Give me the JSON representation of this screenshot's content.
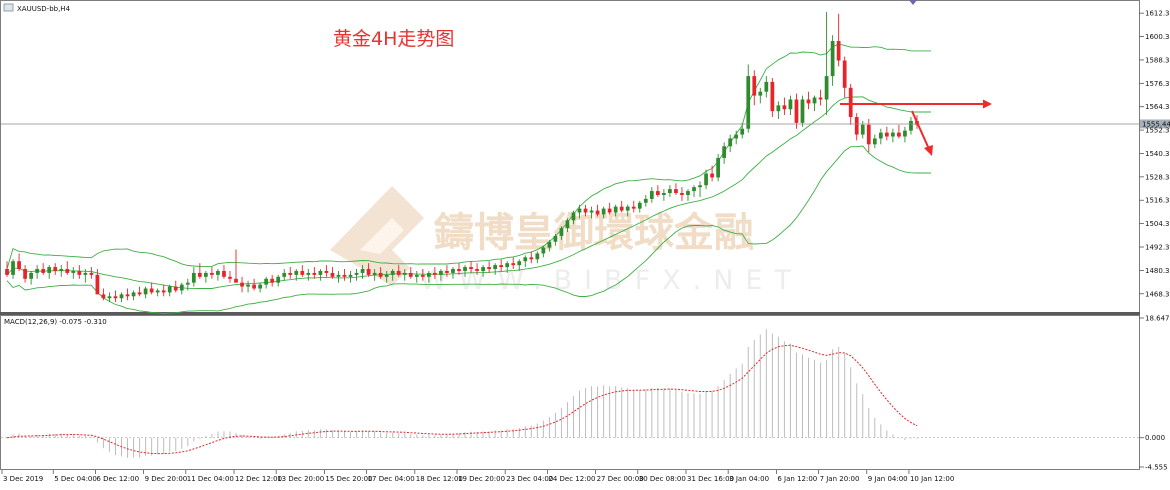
{
  "symbol_label": "XAUUSD-bb,H4",
  "annotation_title": "黄金4H走势图",
  "watermark_cn": "鑄博皇御環球金融",
  "watermark_en": "WWW.BIBFX.NET",
  "colors": {
    "bull": "#2e8b2e",
    "bear": "#e8242b",
    "band": "#3cb043",
    "histogram": "#bdbdbd",
    "signal": "#e3252b",
    "arrow": "#ee2a2a",
    "price_line": "#8a8a8a",
    "price_tag": "#a6b0bb"
  },
  "chart_data": [
    {
      "type": "candlestick",
      "title": "XAUUSD-bb,H4",
      "indicator": "Bollinger Bands",
      "ylim": [
        1461,
        1617
      ],
      "ytick_labels": [
        "1612.30",
        "1600.30",
        "1588.30",
        "1576.30",
        "1564.30",
        "1552.30",
        "1540.30",
        "1528.30",
        "1516.30",
        "1504.30",
        "1492.30",
        "1480.30",
        "1468.30"
      ],
      "current_price": "1555.44",
      "bars": [
        [
          1481,
          1485,
          1477,
          1478
        ],
        [
          1478,
          1486,
          1476,
          1485
        ],
        [
          1485,
          1489,
          1480,
          1481
        ],
        [
          1481,
          1483,
          1474,
          1476
        ],
        [
          1476,
          1480,
          1473,
          1479
        ],
        [
          1479,
          1483,
          1476,
          1481
        ],
        [
          1481,
          1484,
          1478,
          1479
        ],
        [
          1479,
          1483,
          1476,
          1482
        ],
        [
          1482,
          1484,
          1478,
          1480
        ],
        [
          1480,
          1483,
          1477,
          1481
        ],
        [
          1481,
          1485,
          1478,
          1479
        ],
        [
          1479,
          1482,
          1476,
          1480
        ],
        [
          1480,
          1483,
          1476,
          1478
        ],
        [
          1478,
          1481,
          1474,
          1479
        ],
        [
          1479,
          1482,
          1476,
          1478
        ],
        [
          1478,
          1481,
          1470,
          1468
        ],
        [
          1468,
          1471,
          1465,
          1466
        ],
        [
          1466,
          1469,
          1464,
          1467
        ],
        [
          1467,
          1470,
          1464,
          1466
        ],
        [
          1466,
          1469,
          1464,
          1468
        ],
        [
          1468,
          1471,
          1465,
          1467
        ],
        [
          1467,
          1470,
          1465,
          1469
        ],
        [
          1469,
          1472,
          1467,
          1468
        ],
        [
          1468,
          1472,
          1466,
          1471
        ],
        [
          1471,
          1474,
          1468,
          1469
        ],
        [
          1469,
          1471,
          1467,
          1470
        ],
        [
          1470,
          1473,
          1467,
          1469
        ],
        [
          1469,
          1473,
          1467,
          1472
        ],
        [
          1472,
          1475,
          1469,
          1470
        ],
        [
          1470,
          1474,
          1468,
          1473
        ],
        [
          1473,
          1476,
          1470,
          1474
        ],
        [
          1474,
          1482,
          1472,
          1479
        ],
        [
          1479,
          1484,
          1476,
          1477
        ],
        [
          1477,
          1480,
          1474,
          1479
        ],
        [
          1479,
          1482,
          1476,
          1478
        ],
        [
          1478,
          1481,
          1475,
          1480
        ],
        [
          1480,
          1483,
          1476,
          1477
        ],
        [
          1477,
          1480,
          1474,
          1476
        ],
        [
          1476,
          1491,
          1474,
          1474
        ],
        [
          1474,
          1477,
          1469,
          1472
        ],
        [
          1472,
          1475,
          1469,
          1473
        ],
        [
          1473,
          1476,
          1470,
          1471
        ],
        [
          1471,
          1474,
          1469,
          1473
        ],
        [
          1473,
          1477,
          1471,
          1476
        ],
        [
          1476,
          1478,
          1472,
          1474
        ],
        [
          1474,
          1478,
          1472,
          1477
        ],
        [
          1477,
          1481,
          1475,
          1479
        ],
        [
          1479,
          1482,
          1476,
          1478
        ],
        [
          1478,
          1481,
          1475,
          1480
        ],
        [
          1480,
          1483,
          1477,
          1478
        ],
        [
          1478,
          1481,
          1475,
          1479
        ],
        [
          1479,
          1482,
          1476,
          1478
        ],
        [
          1478,
          1481,
          1475,
          1480
        ],
        [
          1480,
          1483,
          1477,
          1479
        ],
        [
          1479,
          1482,
          1476,
          1477
        ],
        [
          1477,
          1480,
          1474,
          1478
        ],
        [
          1478,
          1481,
          1475,
          1477
        ],
        [
          1477,
          1480,
          1474,
          1478
        ],
        [
          1478,
          1481,
          1475,
          1479
        ],
        [
          1479,
          1483,
          1476,
          1481
        ],
        [
          1481,
          1484,
          1477,
          1478
        ],
        [
          1478,
          1481,
          1475,
          1479
        ],
        [
          1479,
          1482,
          1476,
          1477
        ],
        [
          1477,
          1480,
          1474,
          1478
        ],
        [
          1478,
          1481,
          1475,
          1480
        ],
        [
          1480,
          1483,
          1477,
          1478
        ],
        [
          1478,
          1481,
          1475,
          1479
        ],
        [
          1479,
          1482,
          1476,
          1477
        ],
        [
          1477,
          1480,
          1474,
          1478
        ],
        [
          1478,
          1481,
          1475,
          1477
        ],
        [
          1477,
          1480,
          1474,
          1479
        ],
        [
          1479,
          1482,
          1476,
          1478
        ],
        [
          1478,
          1481,
          1475,
          1480
        ],
        [
          1480,
          1483,
          1477,
          1479
        ],
        [
          1479,
          1482,
          1476,
          1481
        ],
        [
          1481,
          1484,
          1478,
          1480
        ],
        [
          1480,
          1483,
          1477,
          1482
        ],
        [
          1482,
          1485,
          1479,
          1481
        ],
        [
          1481,
          1484,
          1478,
          1480
        ],
        [
          1480,
          1483,
          1477,
          1482
        ],
        [
          1482,
          1485,
          1479,
          1481
        ],
        [
          1481,
          1484,
          1478,
          1483
        ],
        [
          1483,
          1486,
          1480,
          1482
        ],
        [
          1482,
          1485,
          1479,
          1484
        ],
        [
          1484,
          1487,
          1481,
          1483
        ],
        [
          1483,
          1486,
          1480,
          1485
        ],
        [
          1485,
          1488,
          1482,
          1487
        ],
        [
          1487,
          1490,
          1484,
          1486
        ],
        [
          1486,
          1490,
          1484,
          1489
        ],
        [
          1489,
          1493,
          1487,
          1492
        ],
        [
          1492,
          1496,
          1490,
          1495
        ],
        [
          1495,
          1499,
          1493,
          1498
        ],
        [
          1498,
          1503,
          1496,
          1502
        ],
        [
          1502,
          1507,
          1500,
          1506
        ],
        [
          1506,
          1511,
          1504,
          1510
        ],
        [
          1510,
          1514,
          1507,
          1512
        ],
        [
          1512,
          1514,
          1508,
          1510
        ],
        [
          1510,
          1513,
          1507,
          1511
        ],
        [
          1511,
          1514,
          1508,
          1509
        ],
        [
          1509,
          1513,
          1507,
          1512
        ],
        [
          1512,
          1515,
          1509,
          1510
        ],
        [
          1510,
          1514,
          1508,
          1513
        ],
        [
          1513,
          1516,
          1510,
          1511
        ],
        [
          1511,
          1514,
          1508,
          1513
        ],
        [
          1513,
          1516,
          1510,
          1512
        ],
        [
          1512,
          1516,
          1510,
          1515
        ],
        [
          1515,
          1519,
          1513,
          1517
        ],
        [
          1517,
          1523,
          1515,
          1521
        ],
        [
          1521,
          1524,
          1518,
          1519
        ],
        [
          1519,
          1522,
          1516,
          1520
        ],
        [
          1520,
          1524,
          1518,
          1522
        ],
        [
          1522,
          1525,
          1519,
          1520
        ],
        [
          1520,
          1523,
          1516,
          1519
        ],
        [
          1519,
          1522,
          1516,
          1521
        ],
        [
          1521,
          1524,
          1518,
          1523
        ],
        [
          1523,
          1526,
          1518,
          1524
        ],
        [
          1524,
          1532,
          1522,
          1530
        ],
        [
          1530,
          1534,
          1526,
          1528
        ],
        [
          1528,
          1540,
          1526,
          1538
        ],
        [
          1538,
          1546,
          1535,
          1544
        ],
        [
          1544,
          1550,
          1541,
          1548
        ],
        [
          1548,
          1552,
          1545,
          1550
        ],
        [
          1550,
          1556,
          1548,
          1553
        ],
        [
          1553,
          1586,
          1551,
          1580
        ],
        [
          1580,
          1583,
          1565,
          1570
        ],
        [
          1570,
          1574,
          1566,
          1572
        ],
        [
          1572,
          1580,
          1569,
          1577
        ],
        [
          1577,
          1579,
          1559,
          1562
        ],
        [
          1562,
          1567,
          1558,
          1565
        ],
        [
          1565,
          1569,
          1560,
          1563
        ],
        [
          1563,
          1570,
          1560,
          1568
        ],
        [
          1568,
          1571,
          1553,
          1556
        ],
        [
          1556,
          1570,
          1554,
          1568
        ],
        [
          1568,
          1572,
          1563,
          1566
        ],
        [
          1566,
          1570,
          1562,
          1569
        ],
        [
          1569,
          1573,
          1565,
          1568
        ],
        [
          1568,
          1613,
          1560,
          1580
        ],
        [
          1580,
          1601,
          1575,
          1598
        ],
        [
          1598,
          1612,
          1585,
          1588
        ],
        [
          1588,
          1590,
          1569,
          1574
        ],
        [
          1574,
          1576,
          1555,
          1559
        ],
        [
          1559,
          1561,
          1547,
          1550
        ],
        [
          1550,
          1557,
          1548,
          1555
        ],
        [
          1555,
          1558,
          1541,
          1545
        ],
        [
          1545,
          1550,
          1543,
          1548
        ],
        [
          1548,
          1553,
          1545,
          1551
        ],
        [
          1551,
          1554,
          1547,
          1549
        ],
        [
          1549,
          1553,
          1546,
          1551
        ],
        [
          1551,
          1555,
          1548,
          1549
        ],
        [
          1549,
          1554,
          1546,
          1552
        ],
        [
          1552,
          1559,
          1550,
          1557
        ],
        [
          1557,
          1560,
          1553,
          1555
        ]
      ]
    },
    {
      "type": "bar+line",
      "title": "MACD(12,26,9) -0.075 -0.310",
      "indicator": "MACD",
      "ylim": [
        -4.555,
        18.647
      ],
      "ytick_labels": [
        "18.647",
        "0.000",
        "-4.555"
      ],
      "x_labels": [
        "3 Dec 2019",
        "5 Dec 04:00",
        "6 Dec 12:00",
        "9 Dec 20:00",
        "11 Dec 04:00",
        "12 Dec 12:00",
        "13 Dec 20:00",
        "15 Dec 20:00",
        "17 Dec 04:00",
        "18 Dec 12:00",
        "19 Dec 20:00",
        "23 Dec 04:00",
        "24 Dec 12:00",
        "27 Dec 00:00",
        "30 Dec 08:00",
        "31 Dec 16:00",
        "3 Jan 04:00",
        "6 Jan 12:00",
        "7 Jan 20:00",
        "9 Jan 04:00",
        "10 Jan 12:00"
      ]
    }
  ]
}
